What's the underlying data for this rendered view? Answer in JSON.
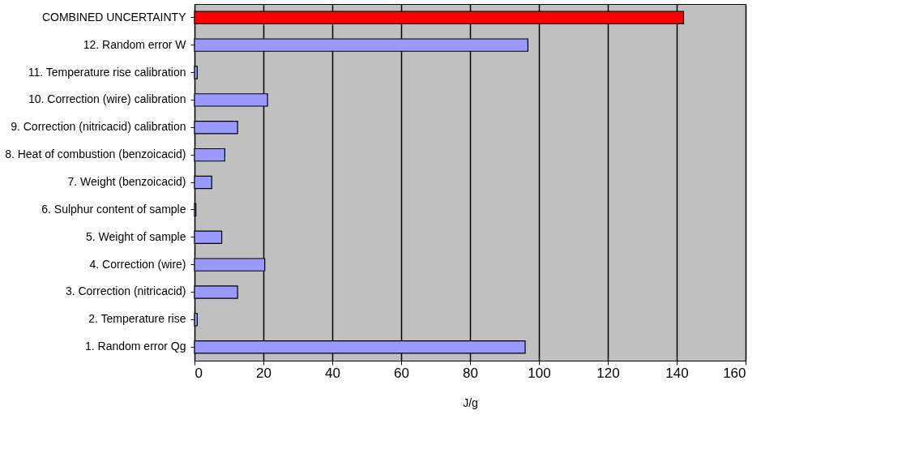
{
  "chart_data": {
    "type": "bar",
    "orientation": "horizontal",
    "xlabel": "J/g",
    "categories": [
      "COMBINED UNCERTAINTY",
      "12. Random error W",
      "11. Temperature rise calibration",
      "10. Correction (wire) calibration",
      "9. Correction (nitricacid) calibration",
      "8. Heat of combustion (benzoicacid)",
      "7. Weight (benzoicacid)",
      "6. Sulphur content of sample",
      "5. Weight of sample",
      "4. Correction (wire)",
      "3. Correction (nitricacid)",
      "2. Temperature rise",
      "1. Random error Qg"
    ],
    "values": [
      142,
      96.8,
      0.8,
      21.2,
      12.5,
      8.8,
      5,
      0.4,
      7.9,
      20.4,
      12.5,
      0.8,
      96
    ],
    "colors": [
      "#ff0000",
      "#9999ff",
      "#9999ff",
      "#9999ff",
      "#9999ff",
      "#9999ff",
      "#9999ff",
      "#9999ff",
      "#9999ff",
      "#9999ff",
      "#9999ff",
      "#9999ff",
      "#9999ff"
    ],
    "xlim": [
      0,
      160
    ],
    "xticks": [
      0,
      20,
      40,
      60,
      80,
      100,
      120,
      140,
      160
    ],
    "grid": "x"
  }
}
